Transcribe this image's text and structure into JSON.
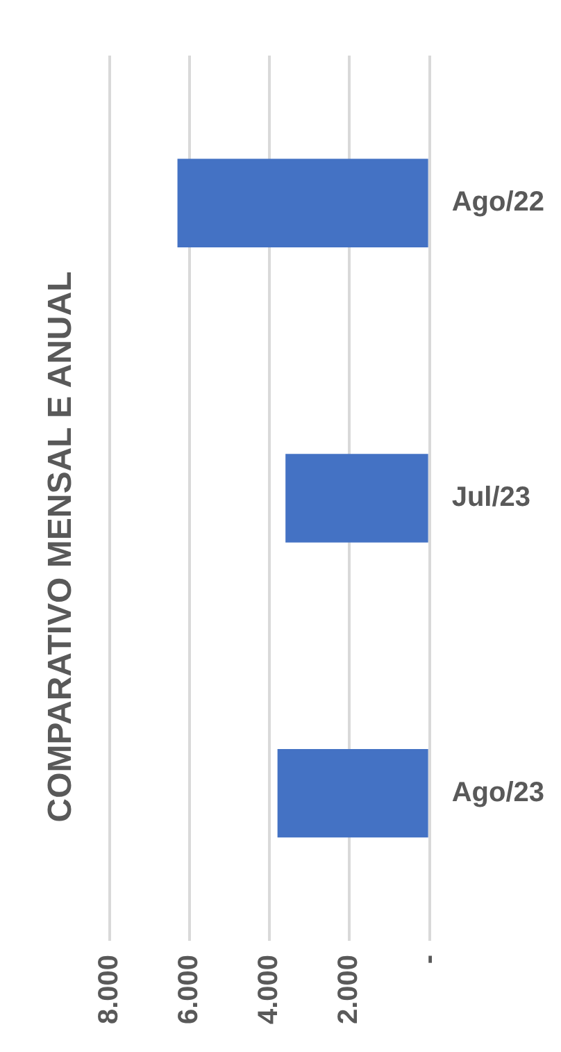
{
  "chart_data": {
    "type": "bar",
    "title": "COMPARATIVO MENSAL E ANUAL",
    "orientation": "horizontal",
    "categories": [
      "Ago/22",
      "Jul/23",
      "Ago/23"
    ],
    "values": [
      6300,
      3600,
      3800
    ],
    "color": "#4472c4",
    "xlim": [
      8000,
      0
    ],
    "xticks": [
      {
        "value": 8000,
        "label": "8.000"
      },
      {
        "value": 6000,
        "label": "6.000"
      },
      {
        "value": 4000,
        "label": "4.000"
      },
      {
        "value": 2000,
        "label": "2.000"
      },
      {
        "value": 0,
        "label": "-"
      }
    ],
    "grid": "x",
    "legend": false
  }
}
